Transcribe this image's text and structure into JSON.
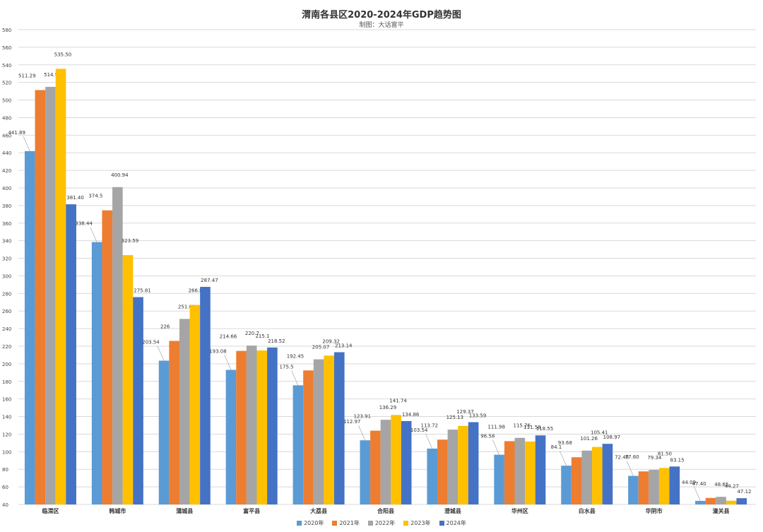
{
  "chart_data": {
    "type": "bar",
    "title": "渭南各县区2020-2024年GDP趋势图",
    "subtitle": "制图：大话富平",
    "categories": [
      "临渭区",
      "韩城市",
      "蒲城县",
      "富平县",
      "大荔县",
      "合阳县",
      "澄城县",
      "华州区",
      "白水县",
      "华阴市",
      "潼关县"
    ],
    "series": [
      {
        "name": "2020年",
        "color": "#5b9bd5",
        "values": [
          441.89,
          338.44,
          203.54,
          193.08,
          175.5,
          112.97,
          103.54,
          96.58,
          84.1,
          72.48,
          44.09
        ]
      },
      {
        "name": "2021年",
        "color": "#ed7d31",
        "values": [
          511.29,
          374.5,
          226,
          214.66,
          192.45,
          123.91,
          113.72,
          111.98,
          93.68,
          77.6,
          47.4
        ]
      },
      {
        "name": "2022年",
        "color": "#a5a5a5",
        "values": [
          514.96,
          400.94,
          251.03,
          220.7,
          205.07,
          136.29,
          125.13,
          115.76,
          101.26,
          79.34,
          48.65
        ]
      },
      {
        "name": "2023年",
        "color": "#ffc000",
        "values": [
          535.5,
          323.59,
          266.88,
          215.1,
          209.32,
          141.74,
          129.37,
          111.58,
          105.41,
          81.5,
          44.27
        ]
      },
      {
        "name": "2024年",
        "color": "#4472c4",
        "values": [
          381.4,
          275.81,
          287.47,
          218.52,
          213.14,
          134.86,
          133.59,
          118.55,
          108.97,
          83.15,
          47.12
        ]
      }
    ],
    "value_labels": [
      [
        "441.89",
        "511.29",
        "514.96",
        "535.50",
        "381.40"
      ],
      [
        "338.44",
        "374.5",
        "400.94",
        "323.59",
        "275.81"
      ],
      [
        "203.54",
        "226",
        "251.03",
        "266.88",
        "287.47"
      ],
      [
        "193.08",
        "214.66",
        "220.7",
        "215.1",
        "218.52"
      ],
      [
        "175.5",
        "192.45",
        "205.07",
        "209.32",
        "213.14"
      ],
      [
        "112.97",
        "123.91",
        "136.29",
        "141.74",
        "134.86"
      ],
      [
        "103.54",
        "113.72",
        "125.13",
        "129.37",
        "133.59"
      ],
      [
        "96.58",
        "111.98",
        "115.76",
        "111.58",
        "118.55"
      ],
      [
        "84.1",
        "93.68",
        "101.26",
        "105.41",
        "108.97"
      ],
      [
        "72.48",
        "77.60",
        "79.34",
        "81.50",
        "83.15"
      ],
      [
        "44.09",
        "47.40",
        "48.65",
        "44.27",
        "47.12"
      ]
    ],
    "yticks": [
      "40",
      "60",
      "80",
      "100",
      "120",
      "140",
      "160",
      "180",
      "200",
      "220",
      "240",
      "260",
      "280",
      "300",
      "320",
      "340",
      "360",
      "380",
      "400",
      "420",
      "440",
      "460",
      "480",
      "500",
      "520",
      "540",
      "560",
      "580"
    ],
    "ylim": [
      40,
      580
    ],
    "xlabel": "",
    "ylabel": "",
    "grid": true,
    "legend": "bottom"
  }
}
